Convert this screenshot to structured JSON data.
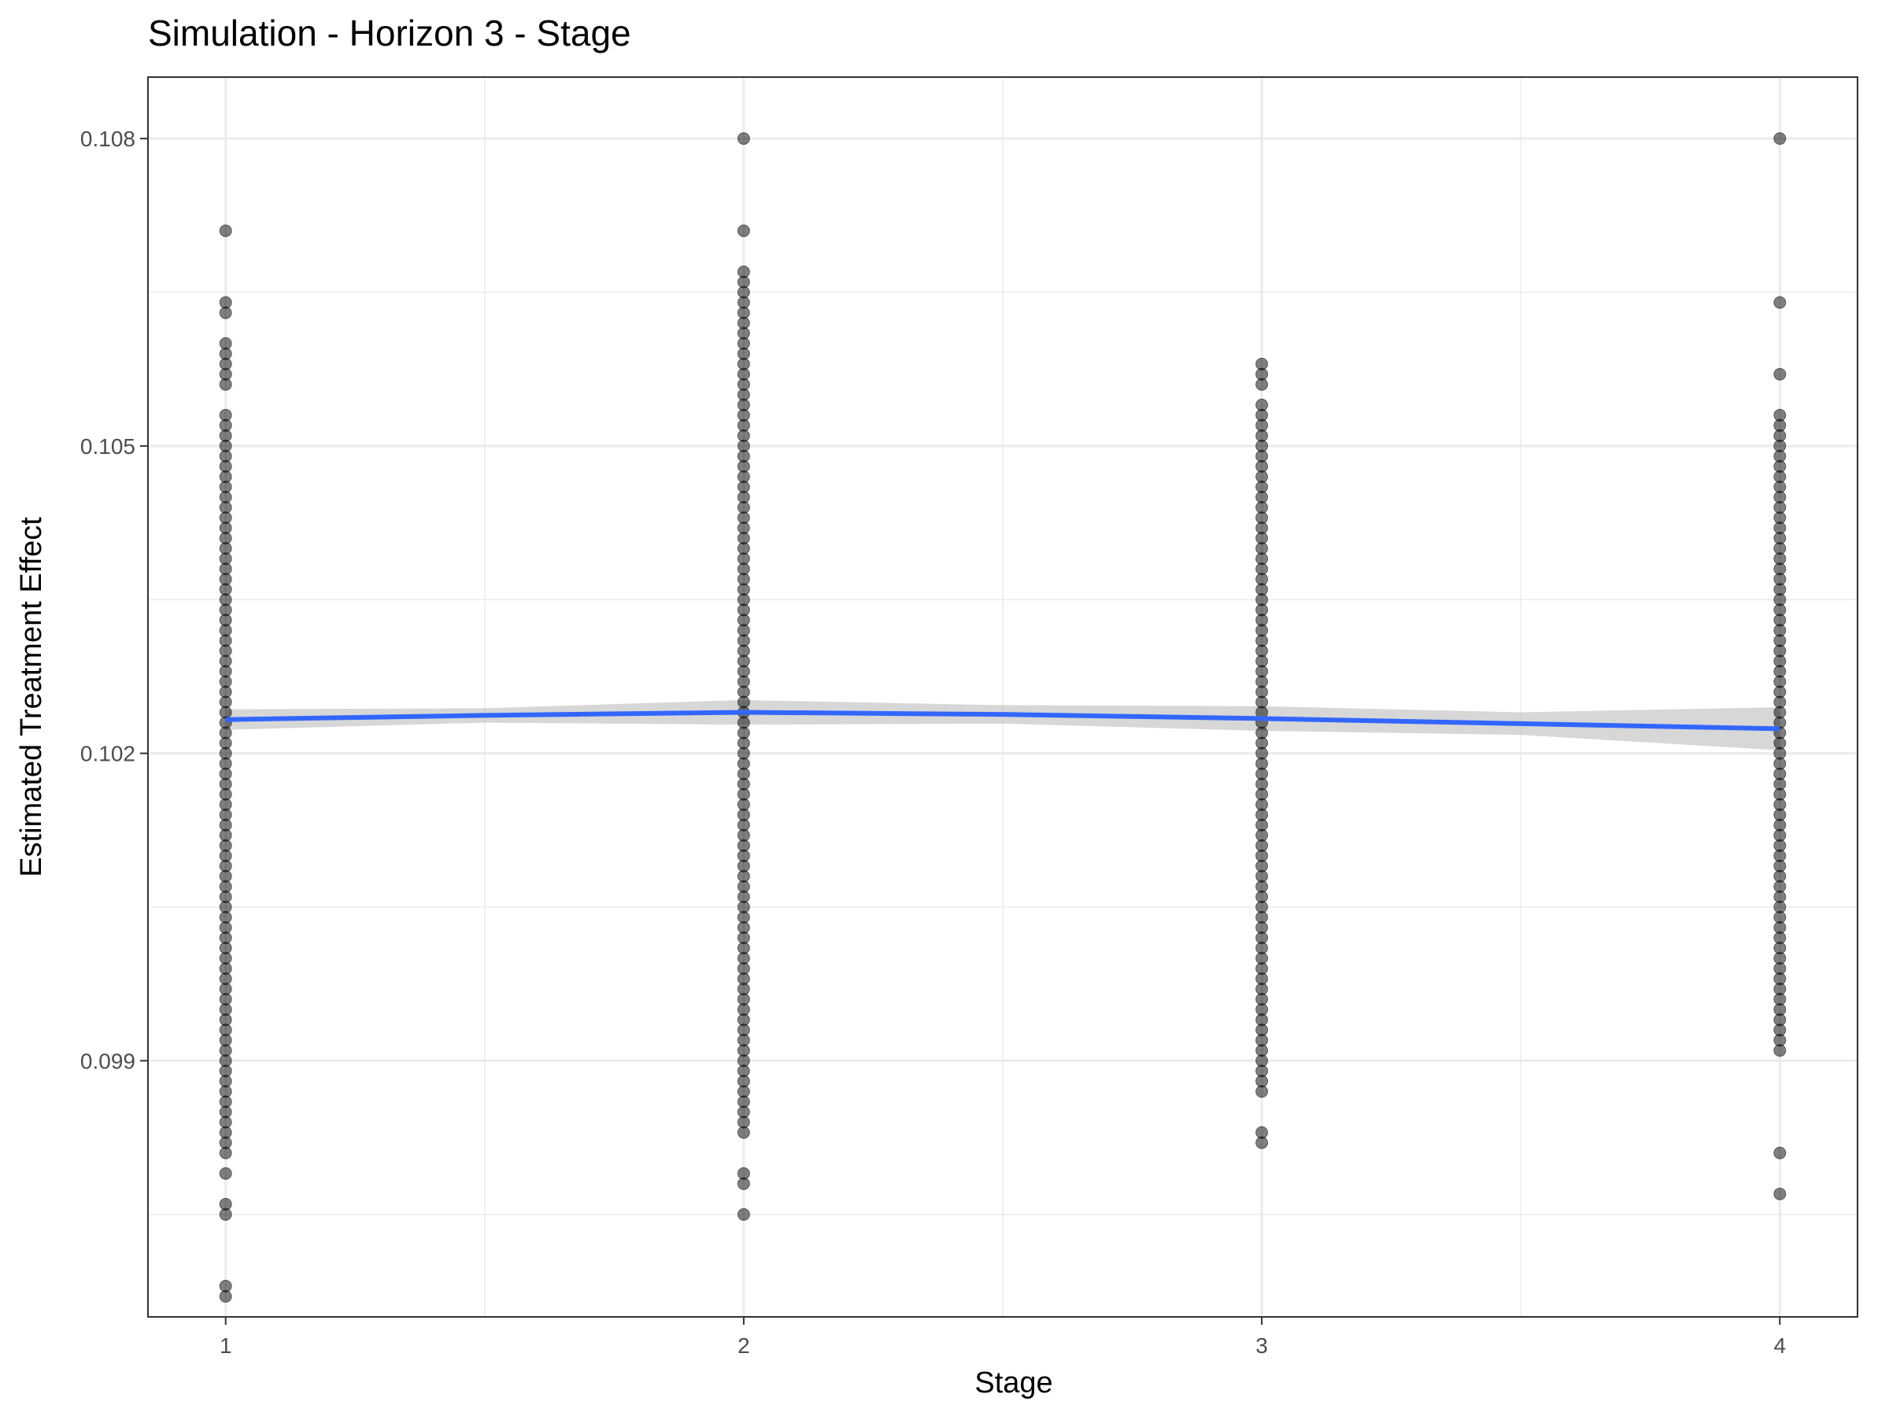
{
  "chart_data": {
    "type": "scatter",
    "title": "Simulation - Horizon 3 - Stage",
    "xlabel": "Stage",
    "ylabel": "Estimated Treatment Effect",
    "x_ticks": [
      1,
      2,
      3,
      4
    ],
    "x_tick_labels": [
      "1",
      "2",
      "3",
      "4"
    ],
    "y_ticks": [
      0.099,
      0.102,
      0.105,
      0.108
    ],
    "y_tick_labels": [
      "0.099",
      "0.102",
      "0.105",
      "0.108"
    ],
    "xlim": [
      0.85,
      4.15
    ],
    "ylim": [
      0.0965,
      0.1086
    ],
    "grid": true,
    "legend": "none",
    "colors": {
      "points": "#000000",
      "smooth_line": "#3366FF",
      "confidence_band": "#BDBDBD",
      "grid": "#EBEBEB",
      "panel_border": "#333333"
    },
    "series": [
      {
        "x": 1,
        "y": [
          0.1071,
          0.1064,
          0.1063,
          0.106,
          0.1059,
          0.1058,
          0.1057,
          0.1056,
          0.1053,
          0.1052,
          0.1051,
          0.105,
          0.1049,
          0.1048,
          0.1047,
          0.1046,
          0.1045,
          0.1044,
          0.1043,
          0.1042,
          0.1041,
          0.104,
          0.1039,
          0.1038,
          0.1037,
          0.1036,
          0.1035,
          0.1034,
          0.1033,
          0.1032,
          0.1031,
          0.103,
          0.1029,
          0.1028,
          0.1027,
          0.1026,
          0.1025,
          0.1024,
          0.1023,
          0.1022,
          0.1021,
          0.102,
          0.1019,
          0.1018,
          0.1017,
          0.1016,
          0.1015,
          0.1014,
          0.1013,
          0.1012,
          0.1011,
          0.101,
          0.1009,
          0.1008,
          0.1007,
          0.1006,
          0.1005,
          0.1004,
          0.1003,
          0.1002,
          0.1001,
          0.1,
          0.0999,
          0.0998,
          0.0997,
          0.0996,
          0.0995,
          0.0994,
          0.0993,
          0.0992,
          0.0991,
          0.099,
          0.0989,
          0.0988,
          0.0987,
          0.0986,
          0.0985,
          0.0984,
          0.0983,
          0.0982,
          0.0981,
          0.0979,
          0.0976,
          0.0975,
          0.0968,
          0.0967
        ]
      },
      {
        "x": 2,
        "y": [
          0.108,
          0.1071,
          0.1067,
          0.1066,
          0.1065,
          0.1064,
          0.1063,
          0.1062,
          0.1061,
          0.106,
          0.1059,
          0.1058,
          0.1057,
          0.1056,
          0.1055,
          0.1054,
          0.1053,
          0.1052,
          0.1051,
          0.105,
          0.1049,
          0.1048,
          0.1047,
          0.1046,
          0.1045,
          0.1044,
          0.1043,
          0.1042,
          0.1041,
          0.104,
          0.1039,
          0.1038,
          0.1037,
          0.1036,
          0.1035,
          0.1034,
          0.1033,
          0.1032,
          0.1031,
          0.103,
          0.1029,
          0.1028,
          0.1027,
          0.1026,
          0.1025,
          0.1024,
          0.1023,
          0.1022,
          0.1021,
          0.102,
          0.1019,
          0.1018,
          0.1017,
          0.1016,
          0.1015,
          0.1014,
          0.1013,
          0.1012,
          0.1011,
          0.101,
          0.1009,
          0.1008,
          0.1007,
          0.1006,
          0.1005,
          0.1004,
          0.1003,
          0.1002,
          0.1001,
          0.1,
          0.0999,
          0.0998,
          0.0997,
          0.0996,
          0.0995,
          0.0994,
          0.0993,
          0.0992,
          0.0991,
          0.099,
          0.0989,
          0.0988,
          0.0987,
          0.0986,
          0.0985,
          0.0984,
          0.0983,
          0.0979,
          0.0978,
          0.0975
        ]
      },
      {
        "x": 3,
        "y": [
          0.1058,
          0.1057,
          0.1056,
          0.1054,
          0.1053,
          0.1052,
          0.1051,
          0.105,
          0.1049,
          0.1048,
          0.1047,
          0.1046,
          0.1045,
          0.1044,
          0.1043,
          0.1042,
          0.1041,
          0.104,
          0.1039,
          0.1038,
          0.1037,
          0.1036,
          0.1035,
          0.1034,
          0.1033,
          0.1032,
          0.1031,
          0.103,
          0.1029,
          0.1028,
          0.1027,
          0.1026,
          0.1025,
          0.1024,
          0.1023,
          0.1022,
          0.1021,
          0.102,
          0.1019,
          0.1018,
          0.1017,
          0.1016,
          0.1015,
          0.1014,
          0.1013,
          0.1012,
          0.1011,
          0.101,
          0.1009,
          0.1008,
          0.1007,
          0.1006,
          0.1005,
          0.1004,
          0.1003,
          0.1002,
          0.1001,
          0.1,
          0.0999,
          0.0998,
          0.0997,
          0.0996,
          0.0995,
          0.0994,
          0.0993,
          0.0992,
          0.0991,
          0.099,
          0.0989,
          0.0988,
          0.0987,
          0.0983,
          0.0982
        ]
      },
      {
        "x": 4,
        "y": [
          0.108,
          0.1064,
          0.1057,
          0.1053,
          0.1052,
          0.1051,
          0.105,
          0.1049,
          0.1048,
          0.1047,
          0.1046,
          0.1045,
          0.1044,
          0.1043,
          0.1042,
          0.1041,
          0.104,
          0.1039,
          0.1038,
          0.1037,
          0.1036,
          0.1035,
          0.1034,
          0.1033,
          0.1032,
          0.1031,
          0.103,
          0.1029,
          0.1028,
          0.1027,
          0.1026,
          0.1025,
          0.1024,
          0.1023,
          0.1022,
          0.1021,
          0.102,
          0.1019,
          0.1018,
          0.1017,
          0.1016,
          0.1015,
          0.1014,
          0.1013,
          0.1012,
          0.1011,
          0.101,
          0.1009,
          0.1008,
          0.1007,
          0.1006,
          0.1005,
          0.1004,
          0.1003,
          0.1002,
          0.1001,
          0.1,
          0.0999,
          0.0998,
          0.0997,
          0.0996,
          0.0995,
          0.0994,
          0.0993,
          0.0992,
          0.0991,
          0.0981,
          0.0977
        ]
      }
    ],
    "smooth": {
      "x": [
        1,
        1.5,
        2,
        2.5,
        3,
        3.5,
        4
      ],
      "y": [
        0.10233,
        0.10237,
        0.1024,
        0.10238,
        0.10234,
        0.10229,
        0.10224
      ],
      "lower": [
        0.10223,
        0.1023,
        0.10228,
        0.10229,
        0.10222,
        0.10218,
        0.10203
      ],
      "upper": [
        0.10243,
        0.10244,
        0.10252,
        0.10247,
        0.10246,
        0.1024,
        0.10245
      ]
    }
  }
}
